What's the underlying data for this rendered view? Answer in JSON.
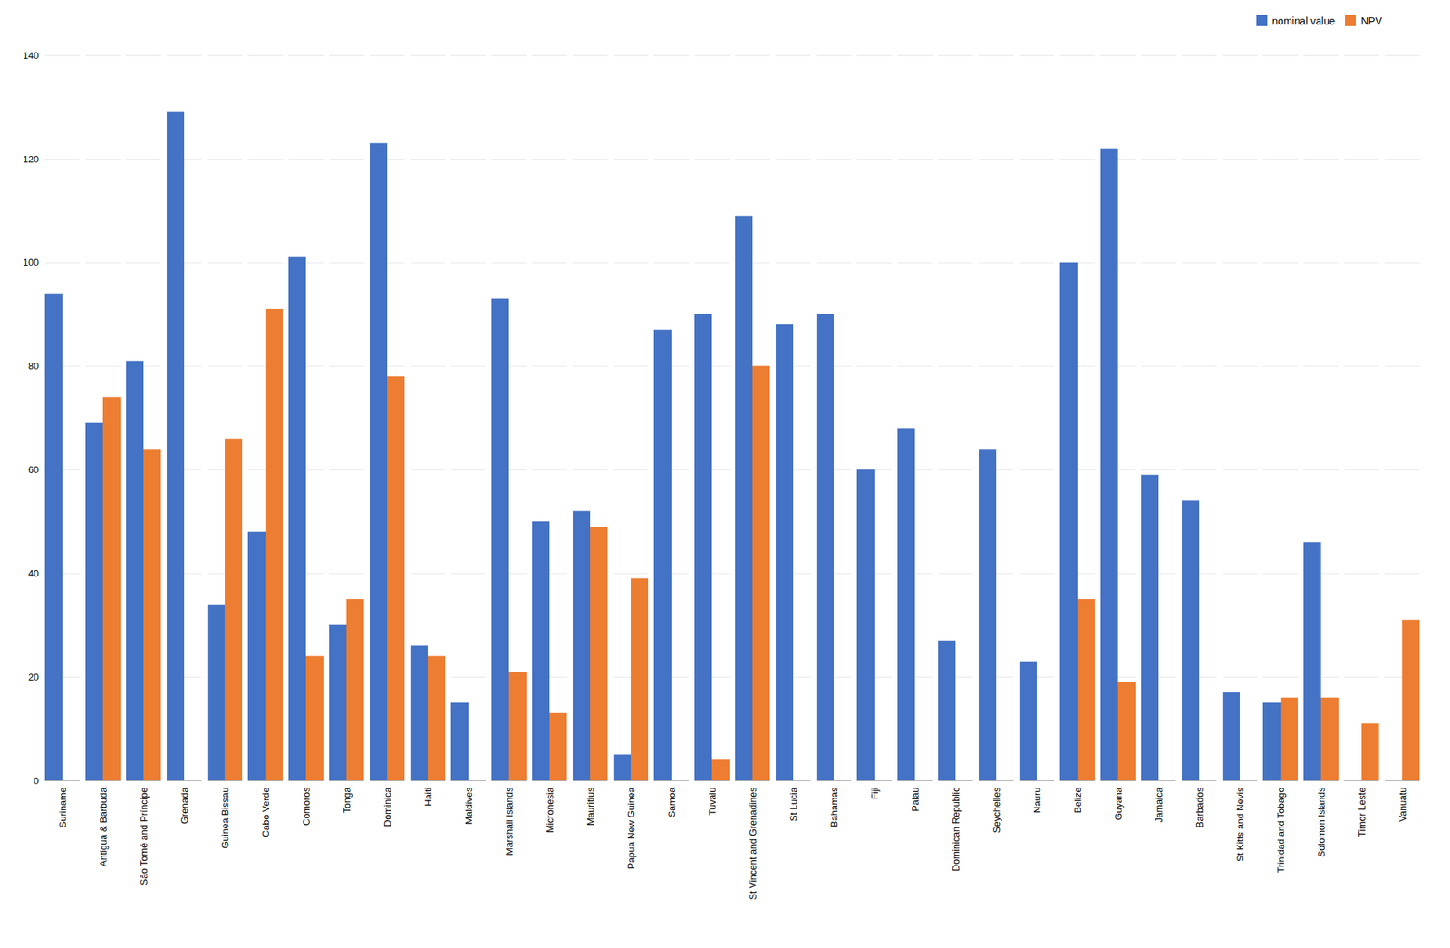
{
  "chart_data": {
    "type": "bar",
    "categories": [
      "Suriname",
      "Antigua & Barbuda",
      "São Tomé and Príncipe",
      "Grenada",
      "Guinea Bissau",
      "Cabo Verde",
      "Comoros",
      "Tonga",
      "Dominica",
      "Haiti",
      "Maldives",
      "Marshall Islands",
      "Micronesia",
      "Mauritius",
      "Papua New Guinea",
      "Samoa",
      "Tuvalu",
      "St Vincent and Grenadines",
      "St Lucia",
      "Bahamas",
      "Fiji",
      "Palau",
      "Dominican Republic",
      "Seychelles",
      "Nauru",
      "Belize",
      "Guyana",
      "Jamaica",
      "Barbados",
      "St Kitts and Nevis",
      "Trinidad and Tobago",
      "Solomon Islands",
      "Timor Leste",
      "Vanuatu"
    ],
    "series": [
      {
        "name": "nominal value",
        "color": "#4472c4",
        "values": [
          94,
          69,
          81,
          129,
          34,
          48,
          101,
          30,
          123,
          26,
          15,
          93,
          50,
          52,
          5,
          87,
          90,
          109,
          88,
          90,
          60,
          68,
          27,
          64,
          23,
          100,
          122,
          59,
          54,
          17,
          15,
          46,
          null,
          null
        ]
      },
      {
        "name": "NPV",
        "color": "#ed7d31",
        "values": [
          null,
          74,
          64,
          null,
          66,
          91,
          24,
          35,
          78,
          24,
          null,
          21,
          13,
          49,
          39,
          null,
          4,
          80,
          null,
          null,
          null,
          null,
          null,
          null,
          null,
          35,
          19,
          null,
          null,
          null,
          16,
          16,
          11,
          31
        ]
      }
    ],
    "ylim": [
      0,
      140
    ],
    "yticks": [
      0,
      20,
      40,
      60,
      80,
      100,
      120,
      140
    ],
    "grid": true,
    "legend": "upper right"
  }
}
